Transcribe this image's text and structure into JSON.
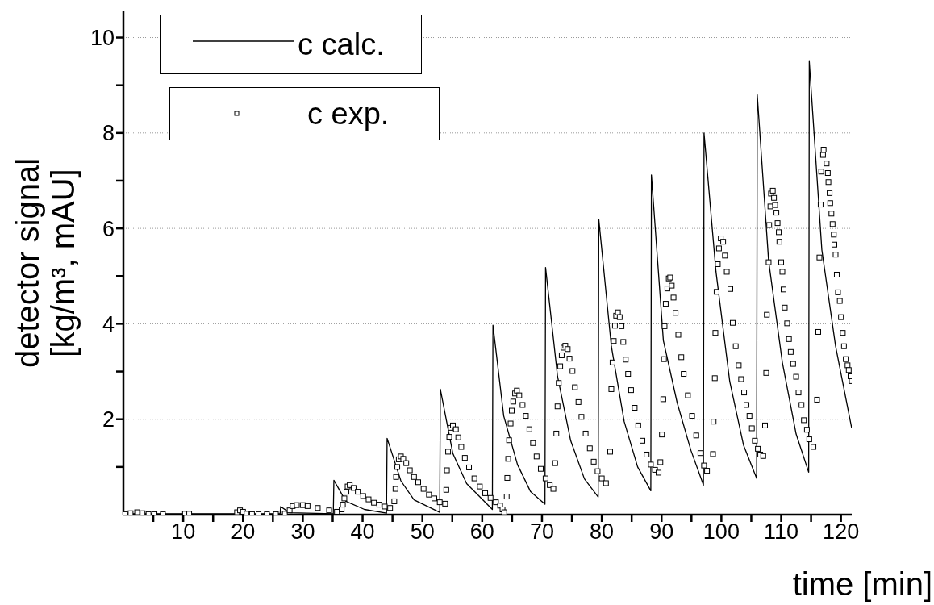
{
  "chart_data": {
    "type": "line",
    "xlabel": "time [min]",
    "ylabel": "detector signal [kg/m³, mAU]",
    "xlim": [
      0,
      121.8
    ],
    "ylim": [
      0,
      10.55
    ],
    "xticks": [
      {
        "value": 5,
        "label": null
      },
      10,
      {
        "value": 15,
        "label": null
      },
      20,
      {
        "value": 25,
        "label": null
      },
      30,
      {
        "value": 35,
        "label": null
      },
      40,
      {
        "value": 45,
        "label": null
      },
      50,
      {
        "value": 55,
        "label": null
      },
      60,
      {
        "value": 65,
        "label": null
      },
      70,
      {
        "value": 75,
        "label": null
      },
      80,
      {
        "value": 85,
        "label": null
      },
      90,
      {
        "value": 95,
        "label": null
      },
      100,
      {
        "value": 105,
        "label": null
      },
      110,
      {
        "value": 115,
        "label": null
      },
      120
    ],
    "yticks": [
      {
        "value": 1,
        "label": null
      },
      2,
      {
        "value": 3,
        "label": null
      },
      4,
      {
        "value": 5,
        "label": null
      },
      6,
      {
        "value": 7,
        "label": null
      },
      8,
      {
        "value": 9,
        "label": null
      },
      10
    ],
    "grid": "y",
    "legend": "top left",
    "series": [
      {
        "name": "c calc.",
        "color": "#000000",
        "marker": "none",
        "line_style": "solid",
        "x": [
          0,
          26.2,
          26.3,
          27.8,
          35.1,
          35.2,
          37.2,
          40.3,
          44.0,
          44.1,
          46.4,
          48.6,
          52.9,
          53.0,
          55.1,
          57.4,
          61.7,
          61.8,
          63.6,
          65.9,
          68.1,
          70.5,
          70.6,
          72.6,
          74.8,
          77.1,
          79.4,
          79.5,
          81.6,
          83.75,
          86.0,
          88.2,
          88.3,
          90.3,
          92.6,
          94.9,
          97.0,
          97.1,
          99.1,
          101.4,
          103.7,
          105.9,
          106.0,
          107.9,
          110.2,
          112.5,
          114.6,
          114.7,
          116.8,
          119.1,
          121.8
        ],
        "values": [
          0.02,
          0.02,
          0.17,
          0.04,
          0.02,
          0.72,
          0.28,
          0.11,
          0.03,
          1.6,
          0.71,
          0.31,
          0.05,
          2.63,
          1.28,
          0.65,
          0.11,
          3.97,
          2.07,
          1.05,
          0.48,
          0.22,
          5.18,
          2.9,
          1.55,
          0.75,
          0.37,
          6.19,
          3.53,
          1.95,
          1.0,
          0.5,
          7.12,
          3.65,
          2.35,
          1.35,
          0.62,
          8.0,
          5.09,
          2.79,
          1.46,
          0.76,
          8.8,
          5.32,
          3.19,
          1.69,
          0.89,
          9.5,
          5.55,
          3.53,
          1.81
        ]
      },
      {
        "name": "c exp.",
        "type": "scatter",
        "color": "#000000",
        "marker": "square",
        "x": [
          0.3,
          1.2,
          2.3,
          3.2,
          4.2,
          5.2,
          6.6,
          10.3,
          11.0,
          19.0,
          19.5,
          20.0,
          20.6,
          21.5,
          22.6,
          24.0,
          25.5,
          27.0,
          27.8,
          28.3,
          29.0,
          30.0,
          30.8,
          32.5,
          34.4,
          35.7,
          36.5,
          36.7,
          36.95,
          37.3,
          37.5,
          37.85,
          38.5,
          39.2,
          40.1,
          41.0,
          41.9,
          42.8,
          43.7,
          44.6,
          45.3,
          45.5,
          45.6,
          45.8,
          46.05,
          46.4,
          46.8,
          47.3,
          47.9,
          48.6,
          49.3,
          50.2,
          51.1,
          52.0,
          52.9,
          53.8,
          54.0,
          54.1,
          54.3,
          54.5,
          54.75,
          55.1,
          55.6,
          56.0,
          56.5,
          57.1,
          57.8,
          58.7,
          59.6,
          60.5,
          61.4,
          62.3,
          63.0,
          63.4,
          63.7,
          64.1,
          64.2,
          64.35,
          64.5,
          64.75,
          64.95,
          65.2,
          65.5,
          65.8,
          66.2,
          66.75,
          67.3,
          67.9,
          68.5,
          69.1,
          69.8,
          70.6,
          71.3,
          71.9,
          72.2,
          72.4,
          72.6,
          72.8,
          73.05,
          73.3,
          73.6,
          73.9,
          74.3,
          74.6,
          75.1,
          75.5,
          76.1,
          76.6,
          77.3,
          78.0,
          78.65,
          79.3,
          80.0,
          80.7,
          81.4,
          81.6,
          81.8,
          82.0,
          82.2,
          82.4,
          82.7,
          83.0,
          83.3,
          83.6,
          84.0,
          84.4,
          84.9,
          85.5,
          86.1,
          86.8,
          87.5,
          88.2,
          88.9,
          89.5,
          89.8,
          90.06,
          90.29,
          90.4,
          90.5,
          90.7,
          90.97,
          91.2,
          91.43,
          91.7,
          92.0,
          92.34,
          92.8,
          93.3,
          93.7,
          94.4,
          95.1,
          95.8,
          96.5,
          97.1,
          97.6,
          98.6,
          98.7,
          98.9,
          99.0,
          99.2,
          99.4,
          99.6,
          99.9,
          100.3,
          100.6,
          100.9,
          101.5,
          101.9,
          102.4,
          102.9,
          103.3,
          103.8,
          104.2,
          104.7,
          105.1,
          105.6,
          106.1,
          106.5,
          107.0,
          107.3,
          107.5,
          107.6,
          107.9,
          108.0,
          108.2,
          108.3,
          108.6,
          108.8,
          109.0,
          109.2,
          109.4,
          109.6,
          109.7,
          110.0,
          110.2,
          110.4,
          110.6,
          111.0,
          111.3,
          111.6,
          112.0,
          112.5,
          112.9,
          113.4,
          113.8,
          114.3,
          114.7,
          115.4,
          116.0,
          116.2,
          116.4,
          116.6,
          116.7,
          117.0,
          117.1,
          117.6,
          117.8,
          117.9,
          118.1,
          118.2,
          118.4,
          118.6,
          118.8,
          118.9,
          119.1,
          119.3,
          119.5,
          119.8,
          120.0,
          120.3,
          120.5,
          120.8,
          121.1,
          121.3,
          121.6,
          121.8
        ],
        "values": [
          0.01,
          0.03,
          0.05,
          0.03,
          0.01,
          0.01,
          0.01,
          0.02,
          0.02,
          0.05,
          0.09,
          0.06,
          0.02,
          0.01,
          0.01,
          0.01,
          0.01,
          0.02,
          0.09,
          0.18,
          0.2,
          0.2,
          0.18,
          0.14,
          0.09,
          0.06,
          0.11,
          0.21,
          0.34,
          0.48,
          0.59,
          0.62,
          0.56,
          0.48,
          0.39,
          0.32,
          0.25,
          0.21,
          0.17,
          0.14,
          0.28,
          0.54,
          0.79,
          1.0,
          1.16,
          1.22,
          1.17,
          1.08,
          0.93,
          0.79,
          0.68,
          0.54,
          0.42,
          0.34,
          0.26,
          0.23,
          0.52,
          0.93,
          1.32,
          1.63,
          1.82,
          1.87,
          1.79,
          1.62,
          1.42,
          1.19,
          0.99,
          0.76,
          0.59,
          0.45,
          0.35,
          0.26,
          0.19,
          0.11,
          0.05,
          0.38,
          0.77,
          1.17,
          1.56,
          1.91,
          2.18,
          2.37,
          2.54,
          2.6,
          2.5,
          2.3,
          2.07,
          1.79,
          1.5,
          1.22,
          0.96,
          0.76,
          0.62,
          0.54,
          1.08,
          1.7,
          2.27,
          2.76,
          3.11,
          3.34,
          3.5,
          3.54,
          3.47,
          3.27,
          3.01,
          2.67,
          2.36,
          2.05,
          1.7,
          1.39,
          1.11,
          0.91,
          0.76,
          0.66,
          1.32,
          2.63,
          3.19,
          3.64,
          3.96,
          4.17,
          4.24,
          4.14,
          3.95,
          3.62,
          3.25,
          2.95,
          2.61,
          2.24,
          1.87,
          1.55,
          1.26,
          1.05,
          0.94,
          0.88,
          1.1,
          1.68,
          2.42,
          3.26,
          3.95,
          4.42,
          4.74,
          4.95,
          4.97,
          4.8,
          4.55,
          4.23,
          3.77,
          3.3,
          2.95,
          2.5,
          2.07,
          1.66,
          1.29,
          1.03,
          0.92,
          1.27,
          1.95,
          2.86,
          3.81,
          4.67,
          5.25,
          5.58,
          5.79,
          5.72,
          5.43,
          5.09,
          4.73,
          4.02,
          3.53,
          3.13,
          2.84,
          2.56,
          2.3,
          2.07,
          1.81,
          1.55,
          1.38,
          1.26,
          1.23,
          1.87,
          2.97,
          4.19,
          5.29,
          6.07,
          6.46,
          6.73,
          6.79,
          6.64,
          6.49,
          6.33,
          6.11,
          5.92,
          5.72,
          5.29,
          5.09,
          4.72,
          4.34,
          4.01,
          3.68,
          3.41,
          3.16,
          2.89,
          2.56,
          2.3,
          1.98,
          1.78,
          1.58,
          1.42,
          2.41,
          3.83,
          5.39,
          6.5,
          7.19,
          7.54,
          7.65,
          7.36,
          7.16,
          6.97,
          6.74,
          6.53,
          6.31,
          6.09,
          5.87,
          5.66,
          5.45,
          5.03,
          4.66,
          4.48,
          4.14,
          3.81,
          3.53,
          3.26,
          3.13,
          3.03,
          2.9,
          2.8
        ]
      }
    ]
  }
}
